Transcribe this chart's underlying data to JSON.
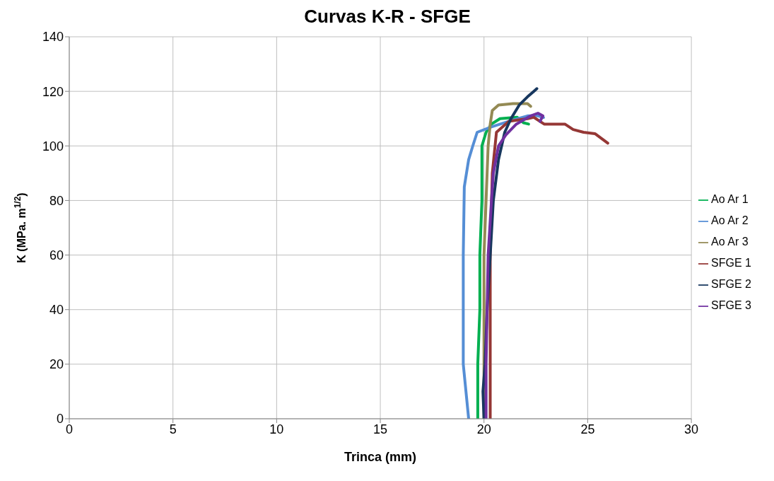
{
  "chart_data": {
    "type": "line",
    "title": "Curvas K-R - SFGE",
    "xlabel": "Trinca (mm)",
    "ylabel": "K (MPa. m$^{1/2}$)",
    "xlim": [
      0,
      30
    ],
    "xticks": [
      0,
      5,
      10,
      15,
      20,
      25,
      30
    ],
    "ylim": [
      0,
      140
    ],
    "yticks": [
      0,
      20,
      40,
      60,
      80,
      100,
      120,
      140
    ],
    "grid": true,
    "legend": "right",
    "marker": "none",
    "line_style": "solid",
    "series": [
      {
        "name": "Ao Ar 1",
        "color": "#00b050",
        "x": [
          19.7,
          19.7,
          19.8,
          19.8,
          19.9,
          19.9,
          19.9,
          20.1,
          20.36,
          20.77,
          21.6,
          21.9,
          22.15
        ],
        "values": [
          0,
          20,
          40,
          60,
          80,
          95,
          100,
          105,
          108,
          110,
          110.5,
          108.5,
          108
        ]
      },
      {
        "name": "Ao Ar 2",
        "color": "#558ed5",
        "x": [
          19.26,
          19.0,
          19.0,
          19.0,
          19.05,
          19.26,
          19.46,
          19.67,
          20.36,
          21.4,
          22.1,
          22.6,
          22.87
        ],
        "values": [
          0,
          20,
          40,
          60,
          85,
          95,
          100,
          105,
          107,
          109.5,
          111,
          111,
          110.4
        ]
      },
      {
        "name": "Ao Ar 3",
        "color": "#948a54",
        "x": [
          20.0,
          20.0,
          20.0,
          20.1,
          20.2,
          20.3,
          20.4,
          20.7,
          21.4,
          22.1,
          22.25
        ],
        "values": [
          0,
          30,
          60,
          80,
          100,
          108,
          113,
          115,
          115.5,
          115.5,
          114.5
        ]
      },
      {
        "name": "SFGE 1",
        "color": "#953735",
        "x": [
          20.3,
          20.3,
          20.3,
          20.4,
          20.6,
          21.2,
          22.1,
          22.4,
          22.9,
          23.45,
          23.9,
          24.3,
          24.8,
          25.35,
          25.97
        ],
        "values": [
          0,
          30,
          60,
          90,
          105,
          109,
          110,
          110.5,
          108,
          108,
          108,
          106,
          105,
          104.5,
          101
        ]
      },
      {
        "name": "SFGE 2",
        "color": "#17375e",
        "x": [
          20.0,
          19.95,
          20.05,
          20.15,
          20.3,
          20.45,
          20.7,
          21.0,
          21.3,
          21.7,
          22.1,
          22.4,
          22.55
        ],
        "values": [
          0,
          10,
          20,
          40,
          60,
          80,
          95,
          105,
          110,
          115,
          118,
          120,
          121
        ]
      },
      {
        "name": "SFGE 3",
        "color": "#7030a0",
        "x": [
          20.1,
          20.1,
          20.15,
          20.2,
          20.36,
          20.45,
          20.7,
          21.05,
          21.56,
          22.25,
          22.6,
          22.84,
          22.7
        ],
        "values": [
          0,
          20,
          40,
          60,
          80,
          90,
          100,
          104,
          108,
          111,
          112,
          111,
          109
        ]
      }
    ]
  }
}
